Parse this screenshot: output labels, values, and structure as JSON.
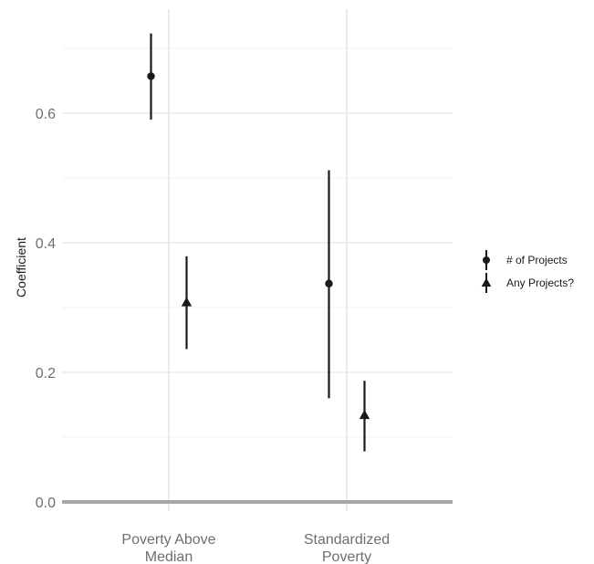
{
  "chart_data": {
    "type": "scatter",
    "ylabel": "Coefficient",
    "xlabel": "",
    "ylim": [
      0,
      0.73
    ],
    "yticks": [
      0.0,
      0.2,
      0.4,
      0.6
    ],
    "ytick_labels": [
      "0.0",
      "0.2",
      "0.4",
      "0.6"
    ],
    "categories": [
      {
        "lines": [
          "Poverty Above",
          "Median"
        ]
      },
      {
        "lines": [
          "Standardized",
          "Poverty"
        ]
      }
    ],
    "grid": true,
    "reference_line_y": 0,
    "legend_position": "right",
    "series": [
      {
        "name": "# of Projects",
        "marker": "circle",
        "points": [
          {
            "category": 0,
            "y": 0.657,
            "low": 0.59,
            "high": 0.723
          },
          {
            "category": 1,
            "y": 0.337,
            "low": 0.16,
            "high": 0.512
          }
        ]
      },
      {
        "name": "Any Projects?",
        "marker": "triangle",
        "points": [
          {
            "category": 0,
            "y": 0.308,
            "low": 0.236,
            "high": 0.379
          },
          {
            "category": 1,
            "y": 0.134,
            "low": 0.078,
            "high": 0.187
          }
        ]
      }
    ],
    "colors": {
      "points": "#1a1a1a",
      "grid_major": "#e5e5e5",
      "grid_minor": "#f0f0f0",
      "zero_line": "#a6a6a6"
    }
  }
}
